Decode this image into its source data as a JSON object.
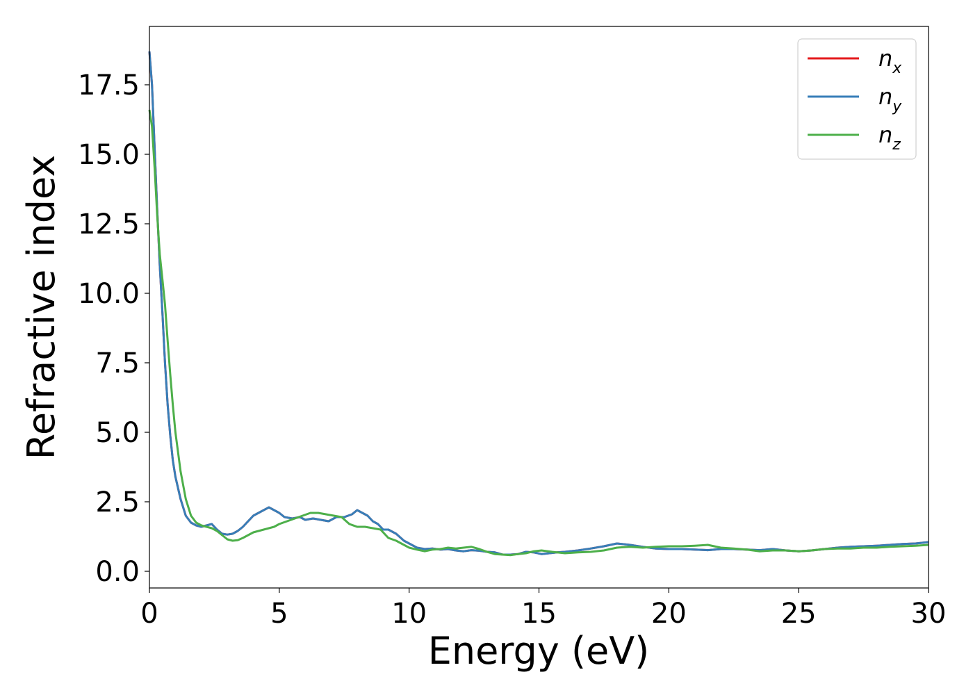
{
  "chart_data": {
    "type": "line",
    "xlabel": "Energy (eV)",
    "ylabel": "Refractive index",
    "xlim": [
      0,
      30
    ],
    "ylim": [
      -0.6,
      19.6
    ],
    "xticks": [
      0,
      5,
      10,
      15,
      20,
      25,
      30
    ],
    "xtick_labels": [
      "0",
      "5",
      "10",
      "15",
      "20",
      "25",
      "30"
    ],
    "yticks": [
      0,
      2.5,
      5,
      7.5,
      10,
      12.5,
      15,
      17.5
    ],
    "ytick_labels": [
      "0.0",
      "2.5",
      "5.0",
      "7.5",
      "10.0",
      "12.5",
      "15.0",
      "17.5"
    ],
    "grid": false,
    "legend_position": "top-right",
    "series": [
      {
        "name": "n",
        "subscript": "x",
        "color": "#e41a1c",
        "x": [
          0,
          0.1,
          0.2,
          0.3,
          0.4,
          0.5,
          0.6,
          0.7,
          0.8,
          0.9,
          1.0,
          1.2,
          1.4,
          1.6,
          1.8,
          2.0,
          2.2,
          2.4,
          2.6,
          2.8,
          3.0,
          3.2,
          3.4,
          3.6,
          3.8,
          4.0,
          4.2,
          4.4,
          4.6,
          4.8,
          5.0,
          5.2,
          5.5,
          5.8,
          6.0,
          6.3,
          6.6,
          6.9,
          7.2,
          7.5,
          7.8,
          8.0,
          8.2,
          8.4,
          8.6,
          8.8,
          9.0,
          9.2,
          9.5,
          9.8,
          10.0,
          10.3,
          10.6,
          10.9,
          11.2,
          11.5,
          11.8,
          12.1,
          12.4,
          12.7,
          13.0,
          13.3,
          13.6,
          13.9,
          14.2,
          14.5,
          14.8,
          15.1,
          15.4,
          15.7,
          16.0,
          16.5,
          17.0,
          17.5,
          18.0,
          18.5,
          19.0,
          19.5,
          20.0,
          20.5,
          21.0,
          21.5,
          22.0,
          22.5,
          23.0,
          23.5,
          24.0,
          24.5,
          25.0,
          25.5,
          26.0,
          26.5,
          27.0,
          27.5,
          28.0,
          28.5,
          29.0,
          29.5,
          30.0
        ],
        "y": [
          18.7,
          17.5,
          15.2,
          13.0,
          11.0,
          9.3,
          7.5,
          6.0,
          4.9,
          4.0,
          3.4,
          2.6,
          2.0,
          1.75,
          1.65,
          1.6,
          1.65,
          1.7,
          1.5,
          1.35,
          1.32,
          1.35,
          1.45,
          1.6,
          1.8,
          2.0,
          2.1,
          2.2,
          2.3,
          2.2,
          2.1,
          1.95,
          1.9,
          1.95,
          1.85,
          1.9,
          1.85,
          1.8,
          1.95,
          1.95,
          2.05,
          2.2,
          2.1,
          2.0,
          1.8,
          1.7,
          1.5,
          1.5,
          1.35,
          1.1,
          1.0,
          0.85,
          0.8,
          0.82,
          0.78,
          0.8,
          0.75,
          0.72,
          0.76,
          0.74,
          0.7,
          0.68,
          0.6,
          0.6,
          0.62,
          0.7,
          0.68,
          0.62,
          0.65,
          0.68,
          0.7,
          0.75,
          0.82,
          0.9,
          1.0,
          0.95,
          0.88,
          0.82,
          0.8,
          0.8,
          0.78,
          0.76,
          0.8,
          0.8,
          0.78,
          0.76,
          0.8,
          0.75,
          0.72,
          0.75,
          0.8,
          0.85,
          0.88,
          0.9,
          0.92,
          0.95,
          0.98,
          1.0,
          1.05
        ]
      },
      {
        "name": "n",
        "subscript": "y",
        "color": "#377eb8",
        "x": [
          0,
          0.1,
          0.2,
          0.3,
          0.4,
          0.5,
          0.6,
          0.7,
          0.8,
          0.9,
          1.0,
          1.2,
          1.4,
          1.6,
          1.8,
          2.0,
          2.2,
          2.4,
          2.6,
          2.8,
          3.0,
          3.2,
          3.4,
          3.6,
          3.8,
          4.0,
          4.2,
          4.4,
          4.6,
          4.8,
          5.0,
          5.2,
          5.5,
          5.8,
          6.0,
          6.3,
          6.6,
          6.9,
          7.2,
          7.5,
          7.8,
          8.0,
          8.2,
          8.4,
          8.6,
          8.8,
          9.0,
          9.2,
          9.5,
          9.8,
          10.0,
          10.3,
          10.6,
          10.9,
          11.2,
          11.5,
          11.8,
          12.1,
          12.4,
          12.7,
          13.0,
          13.3,
          13.6,
          13.9,
          14.2,
          14.5,
          14.8,
          15.1,
          15.4,
          15.7,
          16.0,
          16.5,
          17.0,
          17.5,
          18.0,
          18.5,
          19.0,
          19.5,
          20.0,
          20.5,
          21.0,
          21.5,
          22.0,
          22.5,
          23.0,
          23.5,
          24.0,
          24.5,
          25.0,
          25.5,
          26.0,
          26.5,
          27.0,
          27.5,
          28.0,
          28.5,
          29.0,
          29.5,
          30.0
        ],
        "y": [
          18.7,
          17.5,
          15.2,
          13.0,
          11.0,
          9.3,
          7.5,
          6.0,
          4.9,
          4.0,
          3.4,
          2.6,
          2.0,
          1.75,
          1.65,
          1.6,
          1.65,
          1.7,
          1.5,
          1.35,
          1.32,
          1.35,
          1.45,
          1.6,
          1.8,
          2.0,
          2.1,
          2.2,
          2.3,
          2.2,
          2.1,
          1.95,
          1.9,
          1.95,
          1.85,
          1.9,
          1.85,
          1.8,
          1.95,
          1.95,
          2.05,
          2.2,
          2.1,
          2.0,
          1.8,
          1.7,
          1.5,
          1.5,
          1.35,
          1.1,
          1.0,
          0.85,
          0.8,
          0.82,
          0.78,
          0.8,
          0.75,
          0.72,
          0.76,
          0.74,
          0.7,
          0.68,
          0.6,
          0.6,
          0.62,
          0.7,
          0.68,
          0.62,
          0.65,
          0.68,
          0.7,
          0.75,
          0.82,
          0.9,
          1.0,
          0.95,
          0.88,
          0.82,
          0.8,
          0.8,
          0.78,
          0.76,
          0.8,
          0.8,
          0.78,
          0.76,
          0.8,
          0.75,
          0.72,
          0.75,
          0.8,
          0.85,
          0.88,
          0.9,
          0.92,
          0.95,
          0.98,
          1.0,
          1.05
        ]
      },
      {
        "name": "n",
        "subscript": "z",
        "color": "#4daf4a",
        "x": [
          0,
          0.1,
          0.2,
          0.3,
          0.4,
          0.5,
          0.6,
          0.7,
          0.8,
          0.9,
          1.0,
          1.2,
          1.4,
          1.6,
          1.8,
          2.0,
          2.2,
          2.4,
          2.6,
          2.8,
          3.0,
          3.2,
          3.4,
          3.6,
          3.8,
          4.0,
          4.2,
          4.4,
          4.6,
          4.8,
          5.0,
          5.3,
          5.6,
          5.9,
          6.2,
          6.5,
          6.8,
          7.1,
          7.4,
          7.7,
          8.0,
          8.3,
          8.6,
          8.9,
          9.2,
          9.5,
          9.8,
          10.0,
          10.3,
          10.6,
          10.9,
          11.2,
          11.5,
          11.8,
          12.1,
          12.4,
          12.7,
          13.0,
          13.3,
          13.6,
          13.9,
          14.2,
          14.5,
          14.8,
          15.1,
          15.5,
          16.0,
          16.5,
          17.0,
          17.5,
          18.0,
          18.5,
          19.0,
          19.5,
          20.0,
          20.5,
          21.0,
          21.5,
          22.0,
          22.5,
          23.0,
          23.5,
          24.0,
          24.5,
          25.0,
          25.5,
          26.0,
          26.5,
          27.0,
          27.5,
          28.0,
          28.5,
          29.0,
          29.5,
          30.0
        ],
        "y": [
          16.6,
          16.0,
          14.5,
          12.8,
          11.4,
          10.5,
          9.6,
          8.3,
          7.1,
          6.0,
          5.0,
          3.6,
          2.6,
          2.0,
          1.75,
          1.65,
          1.6,
          1.55,
          1.45,
          1.3,
          1.15,
          1.1,
          1.12,
          1.2,
          1.3,
          1.4,
          1.45,
          1.5,
          1.55,
          1.6,
          1.7,
          1.8,
          1.9,
          2.0,
          2.1,
          2.1,
          2.05,
          2.0,
          1.95,
          1.7,
          1.6,
          1.6,
          1.55,
          1.5,
          1.2,
          1.1,
          0.95,
          0.85,
          0.78,
          0.72,
          0.78,
          0.8,
          0.85,
          0.82,
          0.85,
          0.88,
          0.8,
          0.7,
          0.62,
          0.6,
          0.58,
          0.62,
          0.65,
          0.72,
          0.75,
          0.7,
          0.65,
          0.68,
          0.7,
          0.75,
          0.85,
          0.88,
          0.85,
          0.88,
          0.9,
          0.9,
          0.92,
          0.95,
          0.85,
          0.82,
          0.78,
          0.72,
          0.75,
          0.75,
          0.72,
          0.75,
          0.8,
          0.82,
          0.82,
          0.85,
          0.85,
          0.88,
          0.9,
          0.92,
          0.95
        ]
      }
    ]
  }
}
